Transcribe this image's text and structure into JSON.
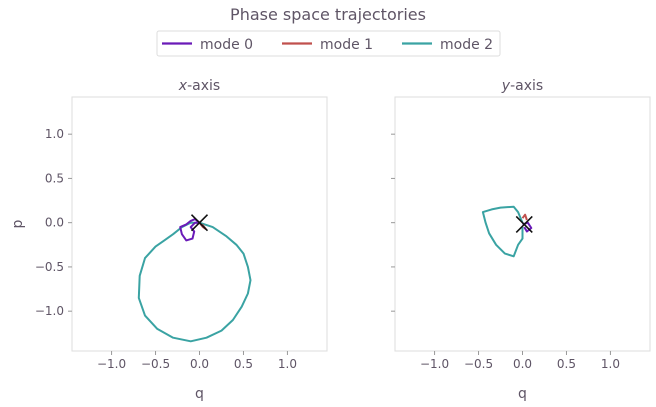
{
  "chart_data": {
    "type": "line",
    "title": "Phase space trajectories",
    "legend": {
      "placement": "top-center",
      "entries": [
        "mode 0",
        "mode 1",
        "mode 2"
      ]
    },
    "colors": {
      "mode 0": "#6a1ab8",
      "mode 1": "#c0504d",
      "mode 2": "#3aa3a3",
      "marker": "#111111",
      "text": "#5f5566",
      "spine": "#dddddd"
    },
    "xlim": [
      -1.45,
      1.45
    ],
    "ylim": [
      -1.45,
      1.42
    ],
    "xticks": [
      -1.0,
      -0.5,
      0.0,
      0.5,
      1.0
    ],
    "xtick_labels": [
      "−1.0",
      "−0.5",
      "0.0",
      "0.5",
      "1.0"
    ],
    "yticks": [
      1.0,
      0.5,
      0.0,
      -0.5,
      -1.0
    ],
    "ytick_labels": [
      "1.0",
      "0.5",
      "0.0",
      "−0.5",
      "−1.0"
    ],
    "ylabel": "p",
    "panels": [
      {
        "title_var": "x",
        "title_rest": "-axis",
        "xlabel": "q",
        "series": [
          {
            "name": "mode 2",
            "points": [
              [
                0,
                0
              ],
              [
                0.15,
                -0.05
              ],
              [
                0.3,
                -0.15
              ],
              [
                0.42,
                -0.25
              ],
              [
                0.5,
                -0.35
              ],
              [
                0.55,
                -0.5
              ],
              [
                0.58,
                -0.65
              ],
              [
                0.55,
                -0.8
              ],
              [
                0.48,
                -0.95
              ],
              [
                0.38,
                -1.1
              ],
              [
                0.25,
                -1.22
              ],
              [
                0.08,
                -1.3
              ],
              [
                -0.1,
                -1.34
              ],
              [
                -0.3,
                -1.3
              ],
              [
                -0.48,
                -1.2
              ],
              [
                -0.62,
                -1.05
              ],
              [
                -0.69,
                -0.85
              ],
              [
                -0.68,
                -0.6
              ],
              [
                -0.62,
                -0.4
              ],
              [
                -0.5,
                -0.27
              ],
              [
                -0.4,
                -0.2
              ],
              [
                -0.3,
                -0.13
              ],
              [
                -0.2,
                -0.05
              ],
              [
                -0.1,
                0
              ],
              [
                0,
                0
              ]
            ]
          },
          {
            "name": "mode 0",
            "points": [
              [
                0,
                0
              ],
              [
                -0.05,
                0.04
              ],
              [
                -0.1,
                0.02
              ],
              [
                -0.15,
                -0.02
              ],
              [
                -0.22,
                -0.05
              ],
              [
                -0.2,
                -0.13
              ],
              [
                -0.15,
                -0.2
              ],
              [
                -0.08,
                -0.18
              ],
              [
                -0.06,
                -0.1
              ],
              [
                -0.1,
                -0.05
              ],
              [
                -0.05,
                0
              ],
              [
                0,
                0
              ]
            ]
          },
          {
            "name": "mode 1",
            "points": [
              [
                0,
                0
              ],
              [
                0.04,
                -0.05
              ],
              [
                0.07,
                -0.07
              ],
              [
                0.03,
                -0.02
              ]
            ]
          }
        ],
        "marker": [
          0.0,
          0.0
        ]
      },
      {
        "title_var": "y",
        "title_rest": "-axis",
        "xlabel": "q",
        "series": [
          {
            "name": "mode 2",
            "points": [
              [
                0,
                0
              ],
              [
                -0.05,
                0.12
              ],
              [
                -0.1,
                0.18
              ],
              [
                -0.25,
                0.17
              ],
              [
                -0.35,
                0.15
              ],
              [
                -0.45,
                0.12
              ],
              [
                -0.42,
                0.0
              ],
              [
                -0.38,
                -0.12
              ],
              [
                -0.3,
                -0.25
              ],
              [
                -0.2,
                -0.35
              ],
              [
                -0.1,
                -0.38
              ],
              [
                -0.05,
                -0.25
              ],
              [
                0.0,
                -0.18
              ],
              [
                0.0,
                -0.05
              ]
            ]
          },
          {
            "name": "mode 1",
            "points": [
              [
                0,
                0.05
              ],
              [
                0.03,
                0.09
              ],
              [
                0.05,
                0.03
              ]
            ]
          },
          {
            "name": "mode 0",
            "points": [
              [
                0.0,
                -0.02
              ],
              [
                0.06,
                0.0
              ],
              [
                0.1,
                -0.06
              ],
              [
                0.05,
                -0.1
              ],
              [
                0.02,
                -0.05
              ]
            ]
          }
        ],
        "marker": [
          0.02,
          -0.02
        ]
      }
    ]
  }
}
